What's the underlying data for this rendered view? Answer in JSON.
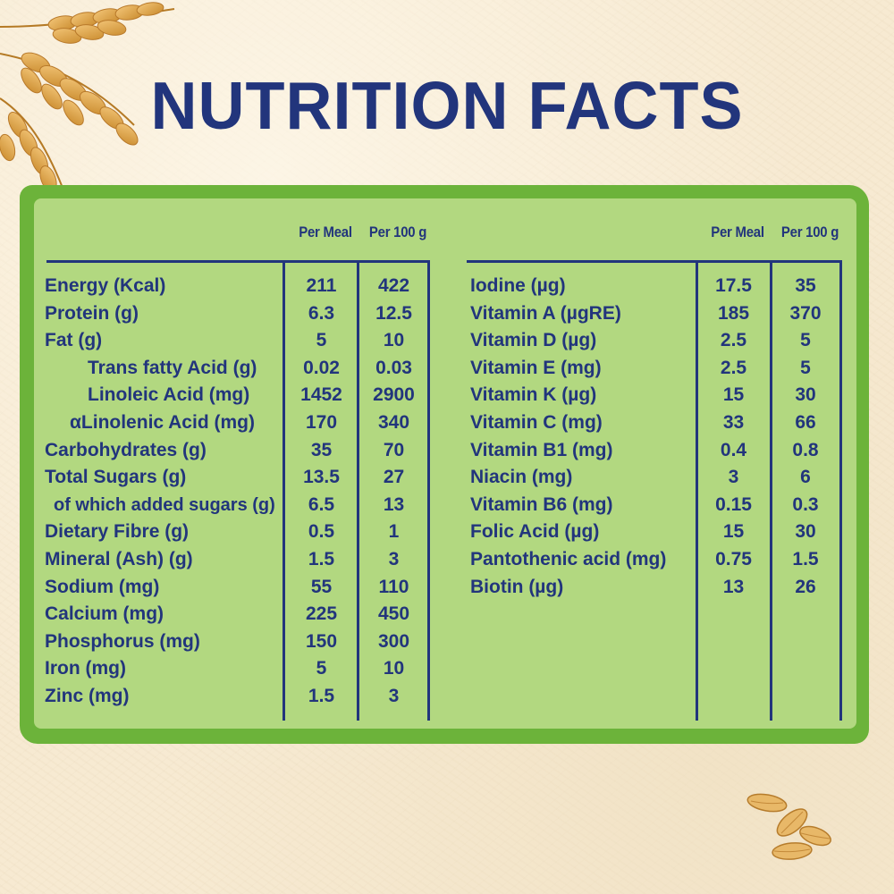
{
  "title": "NUTRITION FACTS",
  "colors": {
    "title": "#22357c",
    "panel_fill": "#b2d880",
    "panel_border": "#6cb33a",
    "background": "#f7ead2"
  },
  "left_table": {
    "headers": [
      "Per Meal",
      "Per 100 g"
    ],
    "rows": [
      {
        "label": "Energy (Kcal)",
        "per_meal": "211",
        "per_100g": "422",
        "indent": 0
      },
      {
        "label": "Protein (g)",
        "per_meal": "6.3",
        "per_100g": "12.5",
        "indent": 0
      },
      {
        "label": "Fat (g)",
        "per_meal": "5",
        "per_100g": "10",
        "indent": 0
      },
      {
        "label": "Trans fatty Acid (g)",
        "per_meal": "0.02",
        "per_100g": "0.03",
        "indent": 2
      },
      {
        "label": "Linoleic Acid (mg)",
        "per_meal": "1452",
        "per_100g": "2900",
        "indent": 2
      },
      {
        "label": "αLinolenic Acid (mg)",
        "per_meal": "170",
        "per_100g": "340",
        "indent": 1
      },
      {
        "label": "Carbohydrates (g)",
        "per_meal": "35",
        "per_100g": "70",
        "indent": 0
      },
      {
        "label": "Total Sugars (g)",
        "per_meal": "13.5",
        "per_100g": "27",
        "indent": 0
      },
      {
        "label": "of which added sugars (g)",
        "per_meal": "6.5",
        "per_100g": "13",
        "indent": 3
      },
      {
        "label": "Dietary Fibre (g)",
        "per_meal": "0.5",
        "per_100g": "1",
        "indent": 0
      },
      {
        "label": "Mineral (Ash) (g)",
        "per_meal": "1.5",
        "per_100g": "3",
        "indent": 0
      },
      {
        "label": "Sodium (mg)",
        "per_meal": "55",
        "per_100g": "110",
        "indent": 0
      },
      {
        "label": "Calcium (mg)",
        "per_meal": "225",
        "per_100g": "450",
        "indent": 0
      },
      {
        "label": "Phosphorus (mg)",
        "per_meal": "150",
        "per_100g": "300",
        "indent": 0
      },
      {
        "label": "Iron (mg)",
        "per_meal": "5",
        "per_100g": "10",
        "indent": 0
      },
      {
        "label": "Zinc (mg)",
        "per_meal": "1.5",
        "per_100g": "3",
        "indent": 0
      }
    ]
  },
  "right_table": {
    "headers": [
      "Per Meal",
      "Per 100 g"
    ],
    "rows": [
      {
        "label": "Iodine (µg)",
        "per_meal": "17.5",
        "per_100g": "35"
      },
      {
        "label": "Vitamin A (µgRE)",
        "per_meal": "185",
        "per_100g": "370"
      },
      {
        "label": "Vitamin D (µg)",
        "per_meal": "2.5",
        "per_100g": "5"
      },
      {
        "label": "Vitamin E (mg)",
        "per_meal": "2.5",
        "per_100g": "5"
      },
      {
        "label": "Vitamin K (µg)",
        "per_meal": "15",
        "per_100g": "30"
      },
      {
        "label": "Vitamin C (mg)",
        "per_meal": "33",
        "per_100g": "66"
      },
      {
        "label": "Vitamin B1 (mg)",
        "per_meal": "0.4",
        "per_100g": "0.8"
      },
      {
        "label": "Niacin (mg)",
        "per_meal": "3",
        "per_100g": "6"
      },
      {
        "label": "Vitamin B6 (mg)",
        "per_meal": "0.15",
        "per_100g": "0.3"
      },
      {
        "label": "Folic Acid (µg)",
        "per_meal": "15",
        "per_100g": "30"
      },
      {
        "label": "Pantothenic acid (mg)",
        "per_meal": "0.75",
        "per_100g": "1.5"
      },
      {
        "label": "Biotin (µg)",
        "per_meal": "13",
        "per_100g": "26"
      }
    ]
  },
  "decorations": [
    "wheat-ears-icon",
    "grain-seeds-icon"
  ]
}
